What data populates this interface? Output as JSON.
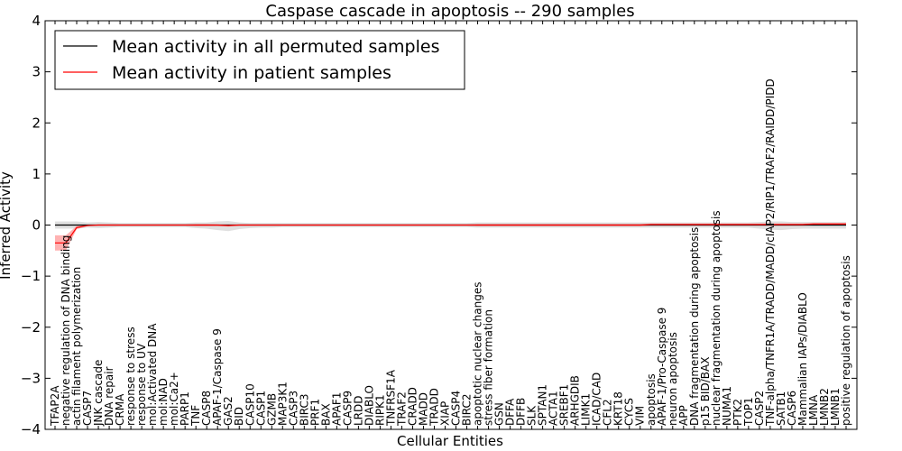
{
  "chart_data": {
    "type": "line",
    "title": "Caspase cascade in apoptosis -- 290 samples",
    "xlabel": "Cellular Entities",
    "ylabel": "Inferred Activity",
    "ylim": [
      -4,
      4
    ],
    "yticks": [
      "−4",
      "−3",
      "−2",
      "−1",
      "0",
      "1",
      "2",
      "3",
      "4"
    ],
    "yticks_values": [
      -4,
      -3,
      -2,
      -1,
      0,
      1,
      2,
      3,
      4
    ],
    "grid": false,
    "legend_position": "top-left",
    "categories": [
      "TFAP2A",
      "negative regulation of DNA binding",
      "actin filament polymerization",
      "CASP7",
      "JNK cascade",
      "DNA repair",
      "CRMA",
      "response to stress",
      "response to UV",
      "mol:Activated DNA",
      "mol:NAD",
      "mol:Ca2+",
      "PARP1",
      "TNF",
      "CASP8",
      "APAF-1/Caspase 9",
      "GAS2",
      "BID",
      "CASP10",
      "CASP1",
      "GZMB",
      "MAP3K1",
      "CASP3",
      "BIRC3",
      "PRF1",
      "BAX",
      "APAF1",
      "CASP9",
      "LRDD",
      "DIABLO",
      "RIPK1",
      "TNFRSF1A",
      "TRAF2",
      "CRADD",
      "MADD",
      "TRADD",
      "XIAP",
      "CASP4",
      "BIRC2",
      "apoptotic nuclear changes",
      "stress fiber formation",
      "GSN",
      "DFFA",
      "DFFB",
      "SLK",
      "SPTAN1",
      "ACTA1",
      "SREBF1",
      "ARHGDIB",
      "LIMK1",
      "ICAD/CAD",
      "CFL2",
      "KRT18",
      "CYCS",
      "VIM",
      "apoptosis",
      "APAF-1/Pro-Caspase 9",
      "neuron apoptosis",
      "APP",
      "DNA fragmentation during apoptosis",
      "p15 BID/BAX",
      "nuclear fragmentation during apoptosis",
      "NUMA1",
      "PTK2",
      "TOP1",
      "CASP2",
      "TNF-alpha/TNFR1A/TRADD/MADD/cIAP2/RIP1/TRAF2/RAIDD/PIDD",
      "SATB1",
      "CASP6",
      "Mammalian IAPs/DIABLO",
      "LMNA",
      "LMNB2",
      "LMNB1",
      "positive regulation of apoptosis"
    ],
    "series": [
      {
        "name": "Mean activity in all permuted samples",
        "color": "#000000",
        "values": [
          0.0,
          0.0,
          0.0,
          0.0,
          0.0,
          0.0,
          0.0,
          0.0,
          0.0,
          0.0,
          0.0,
          0.0,
          0.0,
          0.0,
          0.0,
          0.0,
          0.0,
          0.0,
          0.0,
          0.0,
          0.0,
          0.0,
          0.0,
          0.0,
          0.0,
          0.0,
          0.0,
          0.0,
          0.0,
          0.0,
          0.0,
          0.0,
          0.0,
          0.0,
          0.0,
          0.0,
          0.0,
          0.0,
          0.0,
          0.0,
          0.0,
          0.0,
          0.0,
          0.0,
          0.0,
          0.0,
          0.0,
          0.0,
          0.0,
          0.0,
          0.0,
          0.0,
          0.0,
          0.0,
          0.0,
          0.0,
          0.0,
          0.0,
          0.0,
          0.0,
          0.0,
          0.0,
          0.0,
          0.0,
          0.0,
          0.0,
          0.0,
          0.0,
          0.0,
          0.0,
          0.0,
          0.0,
          0.0,
          0.0
        ],
        "band_upper": [
          0.07,
          0.07,
          0.07,
          0.05,
          0.06,
          0.05,
          0.04,
          0.04,
          0.04,
          0.04,
          0.04,
          0.04,
          0.04,
          0.05,
          0.05,
          0.07,
          0.08,
          0.05,
          0.04,
          0.04,
          0.04,
          0.04,
          0.04,
          0.04,
          0.04,
          0.04,
          0.04,
          0.04,
          0.04,
          0.04,
          0.04,
          0.04,
          0.04,
          0.04,
          0.04,
          0.04,
          0.04,
          0.04,
          0.04,
          0.05,
          0.05,
          0.05,
          0.05,
          0.05,
          0.05,
          0.05,
          0.05,
          0.05,
          0.05,
          0.05,
          0.05,
          0.05,
          0.05,
          0.05,
          0.05,
          0.05,
          0.05,
          0.05,
          0.05,
          0.05,
          0.05,
          0.05,
          0.05,
          0.05,
          0.05,
          0.06,
          0.07,
          0.07,
          0.06,
          0.06,
          0.06,
          0.06,
          0.06,
          0.06
        ],
        "band_lower": [
          -0.07,
          -0.07,
          -0.07,
          -0.05,
          -0.06,
          -0.05,
          -0.04,
          -0.04,
          -0.04,
          -0.04,
          -0.04,
          -0.04,
          -0.04,
          -0.06,
          -0.07,
          -0.1,
          -0.12,
          -0.08,
          -0.06,
          -0.05,
          -0.05,
          -0.04,
          -0.04,
          -0.04,
          -0.04,
          -0.04,
          -0.04,
          -0.04,
          -0.04,
          -0.04,
          -0.04,
          -0.04,
          -0.04,
          -0.04,
          -0.04,
          -0.04,
          -0.04,
          -0.04,
          -0.04,
          -0.05,
          -0.05,
          -0.05,
          -0.05,
          -0.05,
          -0.05,
          -0.05,
          -0.05,
          -0.05,
          -0.05,
          -0.05,
          -0.05,
          -0.05,
          -0.05,
          -0.05,
          -0.05,
          -0.05,
          -0.05,
          -0.05,
          -0.05,
          -0.05,
          -0.05,
          -0.05,
          -0.05,
          -0.05,
          -0.05,
          -0.07,
          -0.09,
          -0.1,
          -0.08,
          -0.07,
          -0.07,
          -0.07,
          -0.07,
          -0.07
        ]
      },
      {
        "name": "Mean activity in patient samples",
        "color": "#ff0000",
        "values": [
          -0.35,
          -0.35,
          -0.05,
          -0.01,
          0.0,
          0.0,
          0.0,
          0.0,
          0.0,
          0.0,
          0.0,
          0.0,
          0.0,
          0.0,
          0.0,
          0.0,
          -0.01,
          0.0,
          0.0,
          0.0,
          0.0,
          0.0,
          0.0,
          0.0,
          0.0,
          0.0,
          0.0,
          0.0,
          0.0,
          0.0,
          0.0,
          0.0,
          0.0,
          0.0,
          0.0,
          0.0,
          0.0,
          0.0,
          0.0,
          0.0,
          0.0,
          0.0,
          0.0,
          0.0,
          0.0,
          0.0,
          0.0,
          0.0,
          0.0,
          0.0,
          0.0,
          0.0,
          0.0,
          0.0,
          0.0,
          0.01,
          0.01,
          0.01,
          0.01,
          0.01,
          0.01,
          0.01,
          0.01,
          0.01,
          0.01,
          0.01,
          0.01,
          0.01,
          0.01,
          0.01,
          0.02,
          0.02,
          0.02,
          0.02
        ],
        "band_upper": [
          -0.2,
          -0.2,
          -0.02,
          0.0,
          0.01,
          0.01,
          0.01,
          0.01,
          0.01,
          0.01,
          0.01,
          0.01,
          0.01,
          0.02,
          0.02,
          0.01,
          0.01,
          0.01,
          0.01,
          0.01,
          0.01,
          0.01,
          0.01,
          0.01,
          0.01,
          0.01,
          0.01,
          0.01,
          0.01,
          0.01,
          0.01,
          0.01,
          0.01,
          0.01,
          0.01,
          0.01,
          0.01,
          0.01,
          0.01,
          0.02,
          0.02,
          0.02,
          0.02,
          0.02,
          0.02,
          0.02,
          0.02,
          0.02,
          0.02,
          0.02,
          0.02,
          0.02,
          0.02,
          0.02,
          0.02,
          0.03,
          0.03,
          0.03,
          0.03,
          0.03,
          0.03,
          0.03,
          0.03,
          0.03,
          0.03,
          0.03,
          0.03,
          0.03,
          0.03,
          0.03,
          0.04,
          0.04,
          0.04,
          0.04
        ],
        "band_lower": [
          -0.5,
          -0.5,
          -0.08,
          -0.02,
          -0.01,
          -0.01,
          -0.01,
          -0.01,
          -0.01,
          -0.01,
          -0.01,
          -0.01,
          -0.01,
          -0.02,
          -0.02,
          -0.02,
          -0.03,
          -0.01,
          -0.01,
          -0.01,
          -0.01,
          -0.01,
          -0.01,
          -0.01,
          -0.01,
          -0.01,
          -0.01,
          -0.01,
          -0.01,
          -0.01,
          -0.01,
          -0.01,
          -0.01,
          -0.01,
          -0.01,
          -0.01,
          -0.01,
          -0.01,
          -0.01,
          -0.02,
          -0.02,
          -0.02,
          -0.02,
          -0.02,
          -0.02,
          -0.02,
          -0.02,
          -0.02,
          -0.02,
          -0.02,
          -0.02,
          -0.02,
          -0.02,
          -0.02,
          -0.02,
          -0.01,
          -0.01,
          -0.01,
          -0.01,
          -0.01,
          -0.01,
          -0.01,
          -0.01,
          -0.01,
          -0.01,
          -0.01,
          -0.01,
          -0.01,
          -0.01,
          -0.01,
          0.0,
          0.0,
          0.0,
          0.0
        ]
      }
    ]
  }
}
